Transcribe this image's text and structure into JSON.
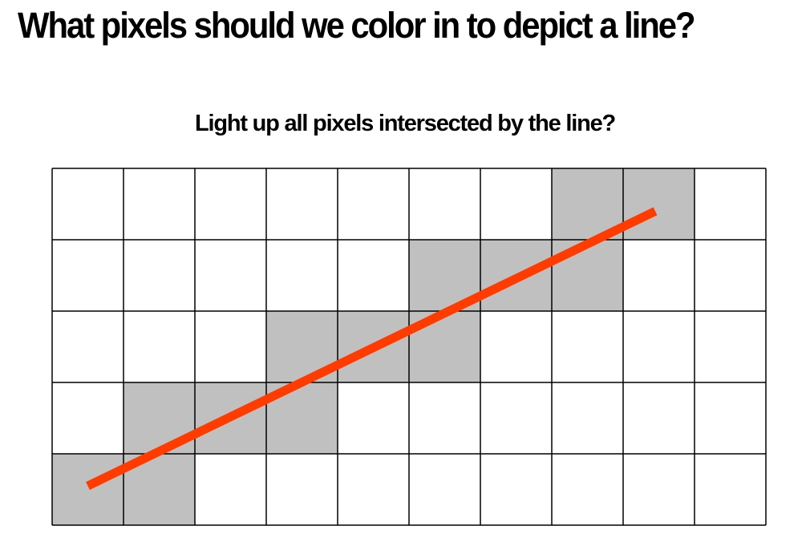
{
  "title": "What pixels should we color in to depict a line?",
  "subtitle": "Light up all pixels intersected by the line?",
  "grid": {
    "columns": 10,
    "rows": 5,
    "highlighted_pixels": [
      [
        7,
        0
      ],
      [
        8,
        0
      ],
      [
        5,
        1
      ],
      [
        6,
        1
      ],
      [
        7,
        1
      ],
      [
        3,
        2
      ],
      [
        4,
        2
      ],
      [
        5,
        2
      ],
      [
        1,
        3
      ],
      [
        2,
        3
      ],
      [
        3,
        3
      ],
      [
        0,
        4
      ],
      [
        1,
        4
      ]
    ]
  },
  "line": {
    "start": [
      0.5,
      4.45
    ],
    "end": [
      8.45,
      0.6
    ]
  },
  "colors": {
    "background": "#ffffff",
    "grid_line": "#000000",
    "pixel_fill": "#c0c0c0",
    "line": "#ff3b00"
  }
}
